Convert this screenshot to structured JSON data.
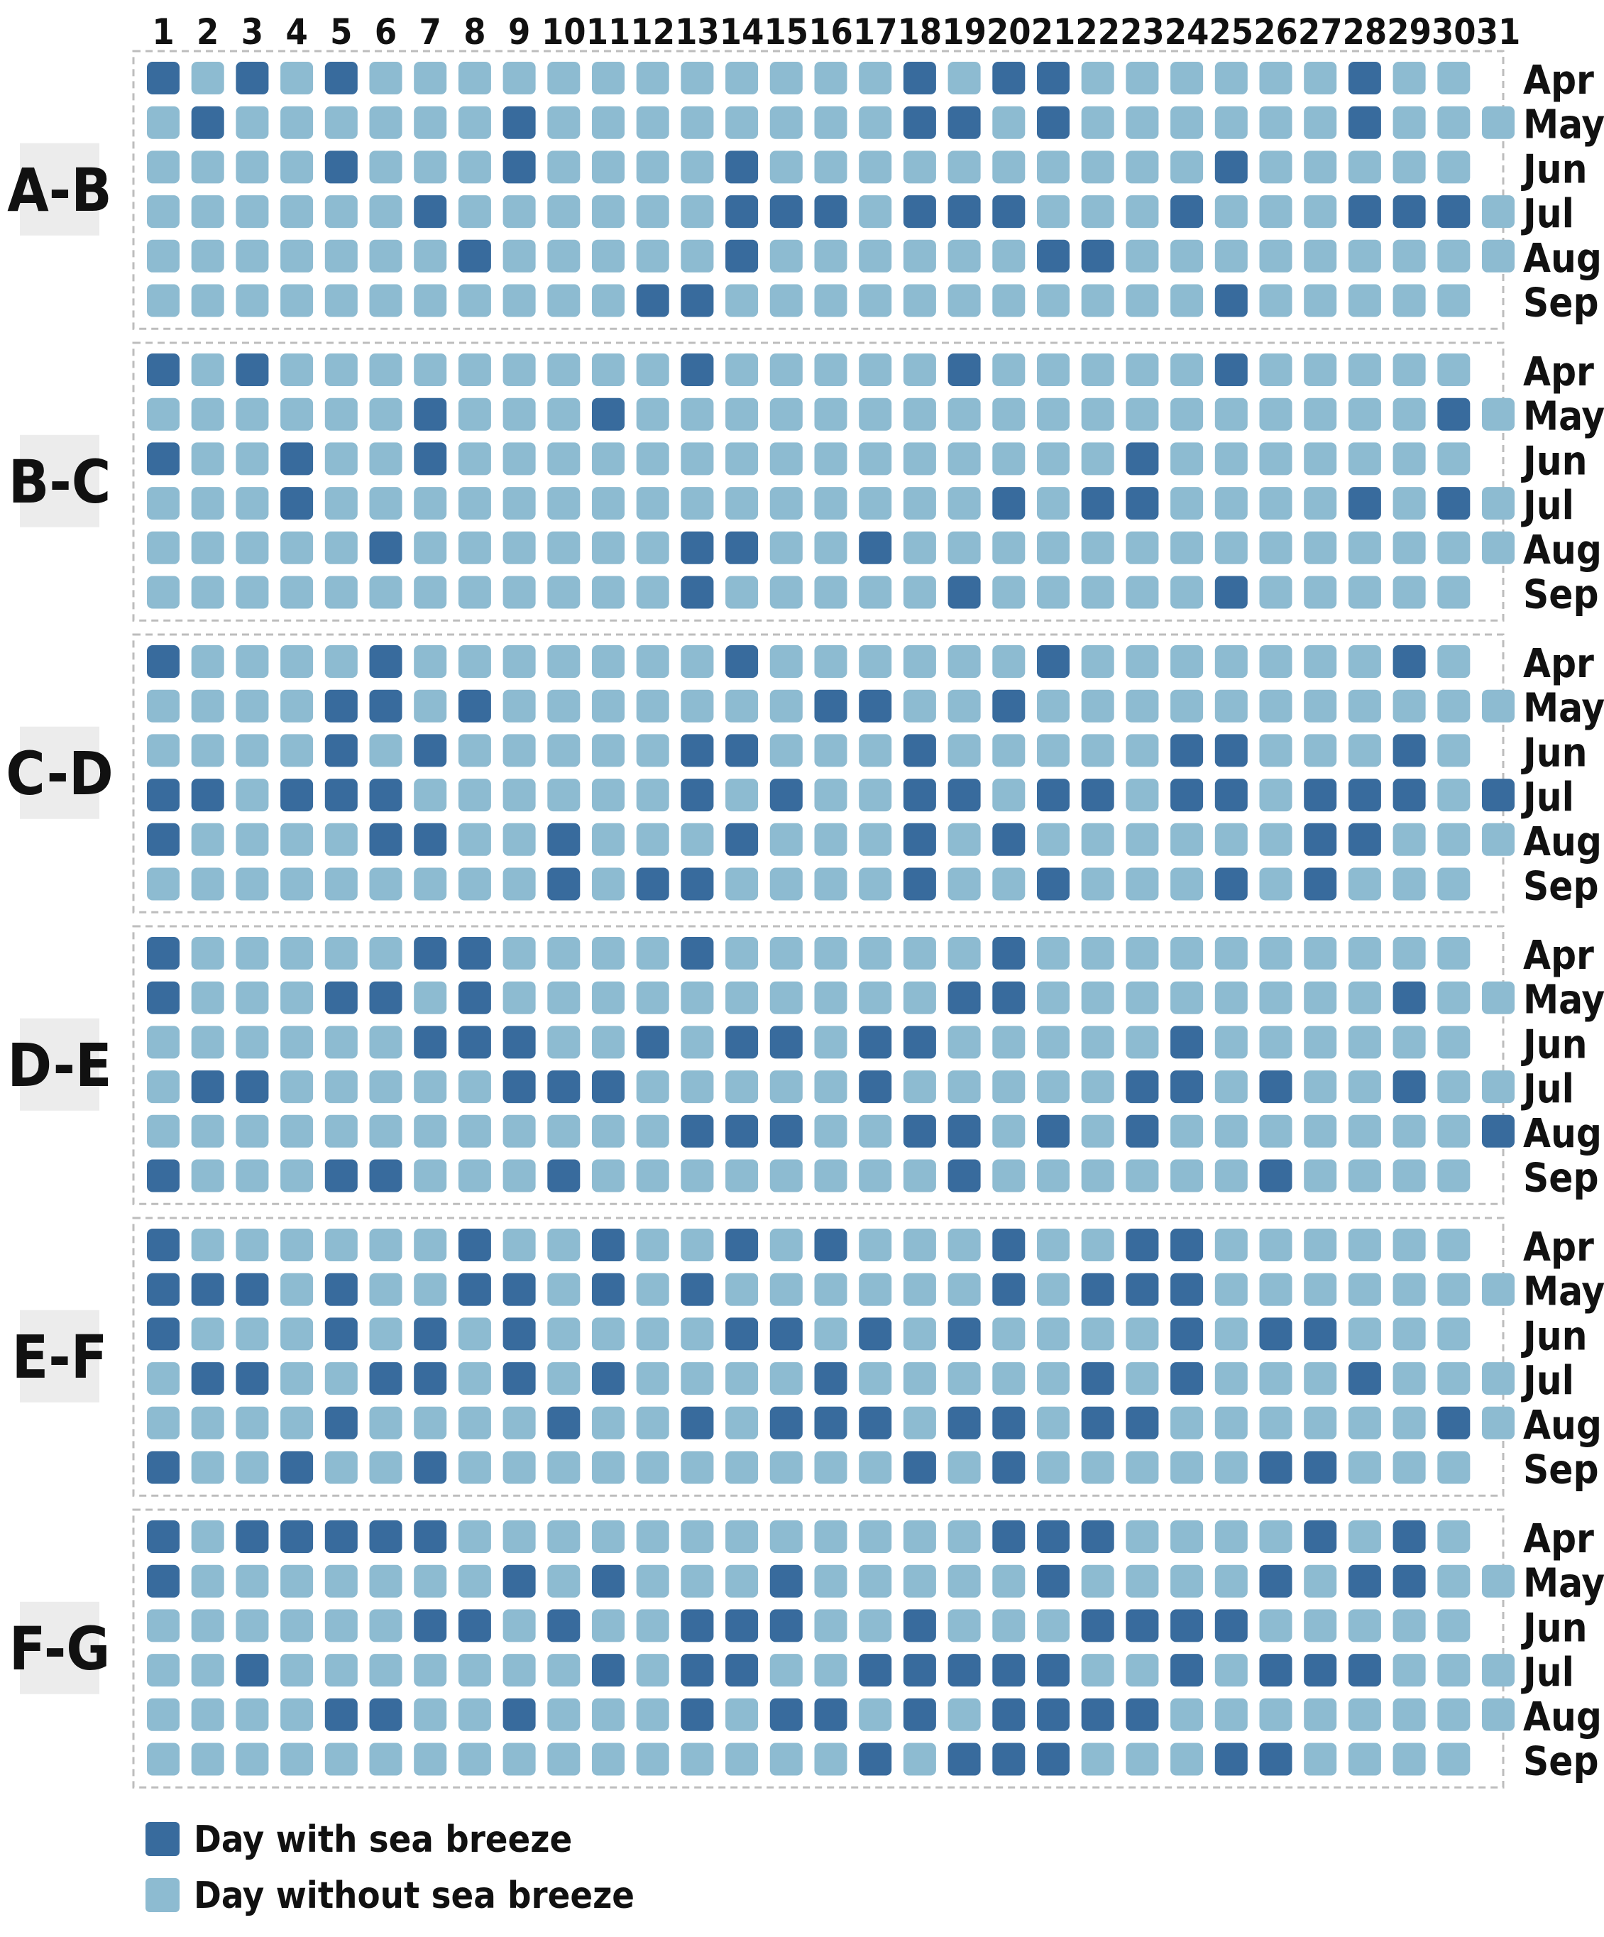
{
  "chart_data": {
    "type": "heatmap",
    "x_categories": [
      "1",
      "2",
      "3",
      "4",
      "5",
      "6",
      "7",
      "8",
      "9",
      "10",
      "11",
      "12",
      "13",
      "14",
      "15",
      "16",
      "17",
      "18",
      "19",
      "20",
      "21",
      "22",
      "23",
      "24",
      "25",
      "26",
      "27",
      "28",
      "29",
      "30",
      "31"
    ],
    "months": [
      "Apr",
      "May",
      "Jun",
      "Jul",
      "Aug",
      "Sep"
    ],
    "days_in_month": [
      30,
      31,
      30,
      31,
      31,
      30
    ],
    "legend": [
      {
        "key": "yes",
        "label": "Day with sea breeze",
        "color": "#386b9d"
      },
      {
        "key": "no",
        "label": "Day without sea breeze",
        "color": "#8dbbd1"
      }
    ],
    "segments": [
      {
        "name": "A-B",
        "rows": [
          "1010100000000000010110000001",
          "010000001000000001101000000100",
          "0000100010000100000000001",
          "00000010000001110111000100011101",
          "0000000100000100000011",
          "00000000000110000000000010"
        ]
      },
      {
        "name": "B-C",
        "rows": [
          "101000000000100000100000100",
          "0000001000100000000000000000010",
          "1001001000000000000000100",
          "0001000000000000000101100001010",
          "0000010000001100100",
          "0000000000001000001000001"
        ]
      },
      {
        "name": "C-D",
        "rows": [
          "1000010000000100000010000000100",
          "0000110100000001100100",
          "00001010000011000100000110001",
          "110111000000101001101101101110111",
          "1000011001000100010100000011",
          "0000000001011000010010001010"
        ]
      },
      {
        "name": "D-E",
        "rows": [
          "100000110000100000010",
          "10001101000000000011000000001",
          "0000001110010110110000010",
          "0110000011100000100000110100100",
          "0000000000001110011010100000001",
          "1000110001000000001000000100"
        ]
      },
      {
        "name": "E-F",
        "rows": [
          "1000000100100101000100110",
          "11101001101010000001011100",
          "100010101000011010100001011",
          "011001101010000100000101000100",
          "000010000100101110110110000001",
          "100100100000000001010000011"
        ]
      },
      {
        "name": "F-G",
        "rows": [
          "101111100000000000011100001010",
          "1000000010100010000010000101100",
          "000000110100111001000111100",
          "001000000010110011111001011100",
          "0000110010001011010111100",
          "0000000000000000101110001100"
        ]
      }
    ]
  }
}
